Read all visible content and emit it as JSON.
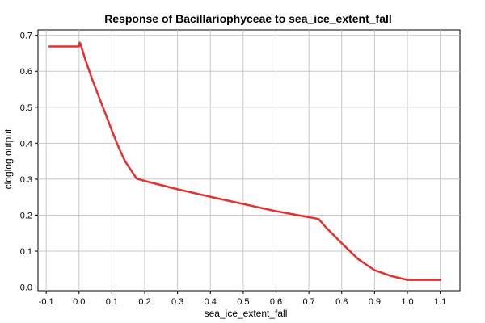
{
  "chart_data": {
    "type": "line",
    "title": "Response of Bacillariophyceae to sea_ice_extent_fall",
    "xlabel": "sea_ice_extent_fall",
    "ylabel": "cloglog output",
    "xlim": [
      -0.125,
      1.16
    ],
    "ylim": [
      -0.01,
      0.715
    ],
    "x_ticks": [
      -0.1,
      0.0,
      0.1,
      0.2,
      0.3,
      0.4,
      0.5,
      0.6,
      0.7,
      0.8,
      0.9,
      1.0,
      1.1
    ],
    "x_tick_labels": [
      "-0.1",
      "0.0",
      "0.1",
      "0.2",
      "0.3",
      "0.4",
      "0.5",
      "0.6",
      "0.7",
      "0.8",
      "0.9",
      "1.0",
      "1.1"
    ],
    "y_ticks": [
      0.0,
      0.1,
      0.2,
      0.3,
      0.4,
      0.5,
      0.6,
      0.7
    ],
    "y_tick_labels": [
      "0.0",
      "0.1",
      "0.2",
      "0.3",
      "0.4",
      "0.5",
      "0.6",
      "0.7"
    ],
    "grid": true,
    "series": [
      {
        "color": "#e53030",
        "x": [
          -0.09,
          0.0,
          0.002,
          0.004,
          0.008,
          0.02,
          0.04,
          0.06,
          0.08,
          0.1,
          0.12,
          0.14,
          0.175,
          0.2,
          0.3,
          0.4,
          0.5,
          0.6,
          0.72,
          0.73,
          0.75,
          0.8,
          0.85,
          0.9,
          0.95,
          1.0,
          1.1
        ],
        "y": [
          0.669,
          0.669,
          0.68,
          0.677,
          0.665,
          0.63,
          0.578,
          0.53,
          0.483,
          0.435,
          0.39,
          0.35,
          0.302,
          0.295,
          0.272,
          0.251,
          0.231,
          0.211,
          0.191,
          0.189,
          0.168,
          0.122,
          0.078,
          0.047,
          0.031,
          0.02,
          0.02
        ]
      }
    ]
  }
}
